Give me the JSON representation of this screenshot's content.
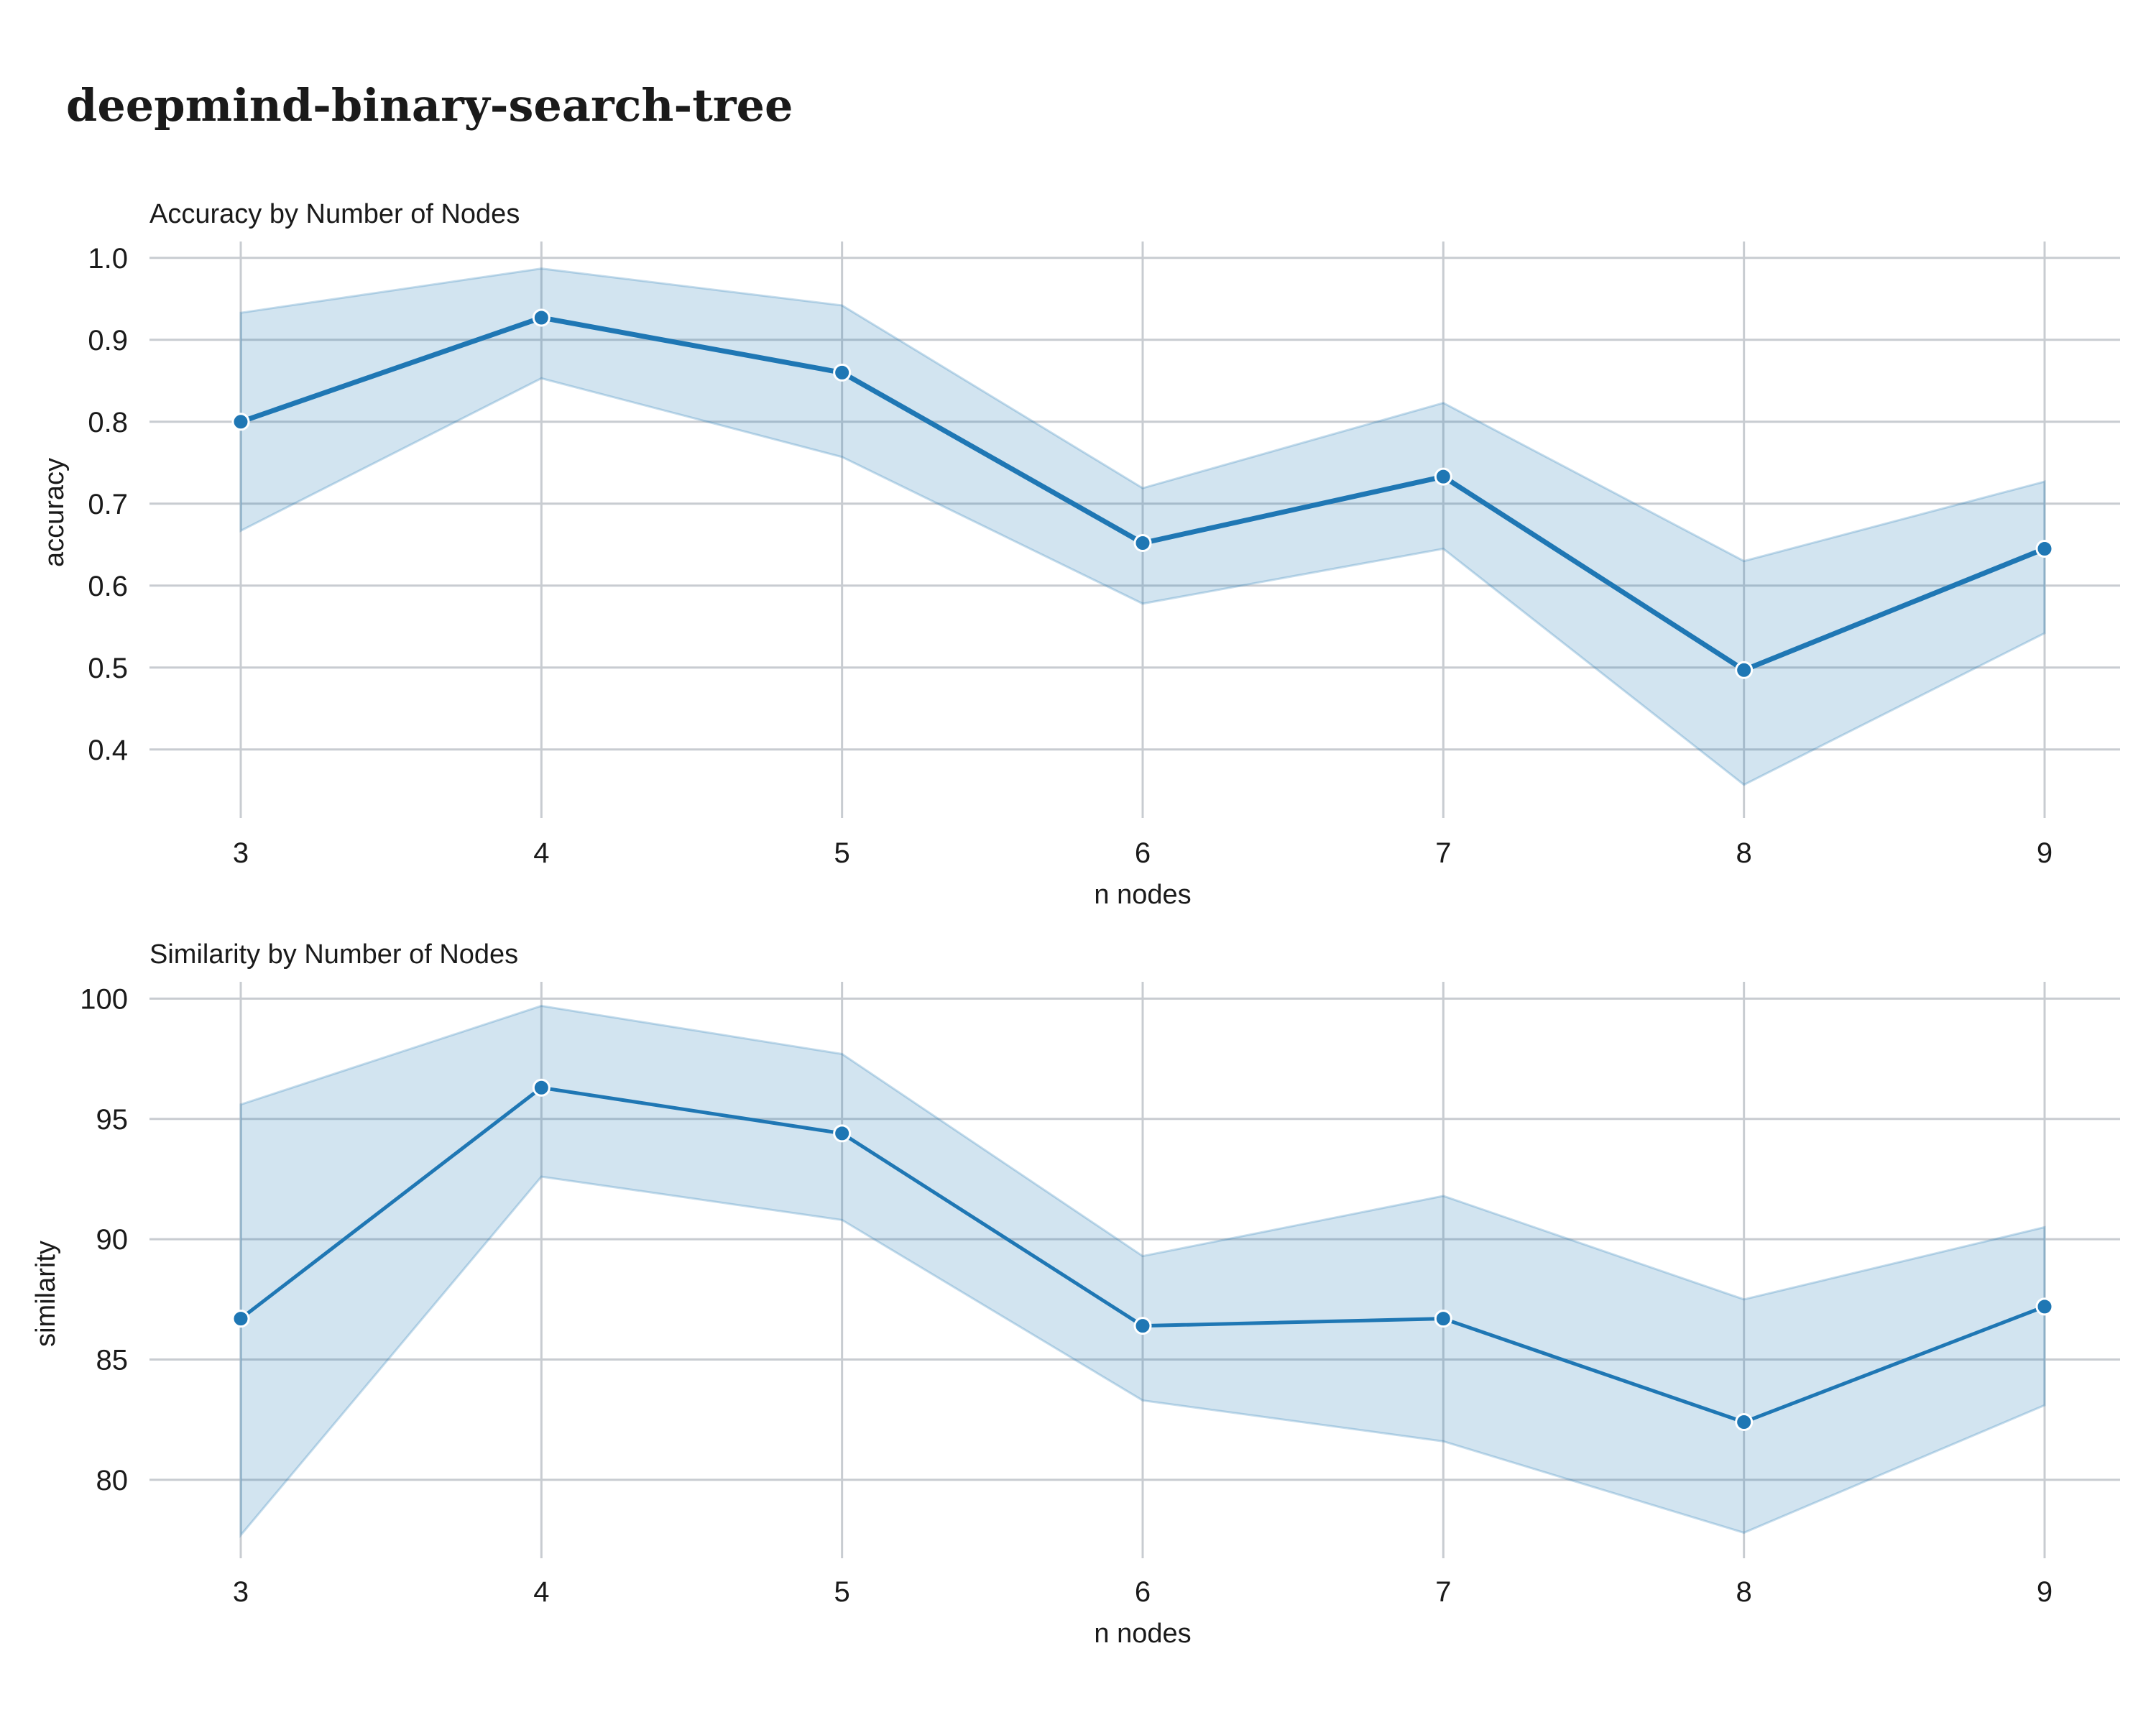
{
  "title": "deepmind-binary-search-tree",
  "colors": {
    "series": "#1f77b4",
    "grid": "#c8ccd1",
    "text": "#1a1a1a"
  },
  "chart_data": [
    {
      "type": "line",
      "title": "Accuracy by Number of Nodes",
      "xlabel": "n nodes",
      "ylabel": "accuracy",
      "x": [
        3,
        4,
        5,
        6,
        7,
        8,
        9
      ],
      "xticks": [
        "3",
        "4",
        "5",
        "6",
        "7",
        "8",
        "9"
      ],
      "yticks": [
        0.4,
        0.5,
        0.6,
        0.7,
        0.8,
        0.9,
        1.0
      ],
      "ytick_labels": [
        "0.4",
        "0.5",
        "0.6",
        "0.7",
        "0.8",
        "0.9",
        "1.0"
      ],
      "ylim": [
        0.32,
        1.02
      ],
      "grid": true,
      "series": [
        {
          "values": [
            0.8,
            0.927,
            0.86,
            0.652,
            0.733,
            0.497,
            0.645
          ],
          "ci_lower": [
            0.667,
            0.853,
            0.757,
            0.578,
            0.645,
            0.357,
            0.542
          ],
          "ci_upper": [
            0.933,
            0.987,
            0.942,
            0.719,
            0.823,
            0.63,
            0.727
          ]
        }
      ]
    },
    {
      "type": "line",
      "title": "Similarity by Number of Nodes",
      "xlabel": "n nodes",
      "ylabel": "similarity",
      "x": [
        3,
        4,
        5,
        6,
        7,
        8,
        9
      ],
      "xticks": [
        "3",
        "4",
        "5",
        "6",
        "7",
        "8",
        "9"
      ],
      "yticks": [
        80,
        85,
        90,
        95,
        100
      ],
      "ytick_labels": [
        "80",
        "85",
        "90",
        "95",
        "100"
      ],
      "ylim": [
        76.8,
        100.7
      ],
      "grid": true,
      "series": [
        {
          "values": [
            86.7,
            96.3,
            94.4,
            86.4,
            86.7,
            82.4,
            87.2
          ],
          "ci_lower": [
            77.7,
            92.6,
            90.8,
            83.3,
            81.6,
            77.8,
            83.1
          ],
          "ci_upper": [
            95.6,
            99.7,
            97.7,
            89.3,
            91.8,
            87.5,
            90.5
          ]
        }
      ]
    }
  ]
}
